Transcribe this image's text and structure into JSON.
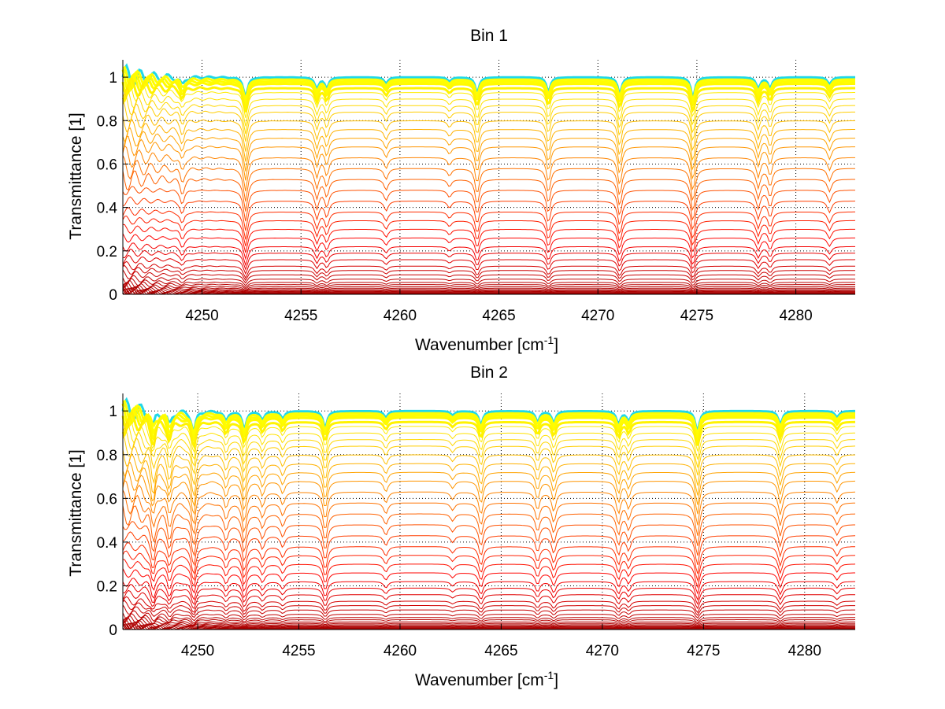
{
  "chart_data": [
    {
      "type": "line",
      "title": "Bin 1",
      "xlabel": "Wavenumber [cm",
      "xlabel_sup": "-1",
      "xlabel_end": "]",
      "ylabel": "Transmittance [1]",
      "xlim": [
        4246,
        4283
      ],
      "ylim": [
        0,
        1.08
      ],
      "xticks": [
        4250,
        4255,
        4260,
        4265,
        4270,
        4275,
        4280
      ],
      "yticks": [
        0,
        0.2,
        0.4,
        0.6,
        0.8,
        1
      ],
      "xtick_labels": [
        "4250",
        "4255",
        "4260",
        "4265",
        "4270",
        "4275",
        "4280"
      ],
      "ytick_labels": [
        "0",
        "0.2",
        "0.4",
        "0.6",
        "0.8",
        "1"
      ],
      "grid": true,
      "series_count": 40,
      "colormap": "jet",
      "series_baseline_levels": [
        1.0,
        0.99,
        0.98,
        0.97,
        0.95,
        0.93,
        0.9,
        0.87,
        0.84,
        0.8,
        0.76,
        0.72,
        0.68,
        0.63,
        0.58,
        0.53,
        0.48,
        0.43,
        0.38,
        0.34,
        0.3,
        0.26,
        0.22,
        0.19,
        0.16,
        0.13,
        0.11,
        0.09,
        0.07,
        0.055,
        0.045,
        0.035,
        0.028,
        0.022,
        0.017,
        0.013,
        0.01,
        0.007,
        0.004,
        0.002
      ],
      "absorption_lines": [
        {
          "x": 4249.0,
          "depth": 0.4
        },
        {
          "x": 4252.2,
          "depth": 1.0
        },
        {
          "x": 4255.8,
          "depth": 0.55
        },
        {
          "x": 4256.3,
          "depth": 0.5
        },
        {
          "x": 4259.3,
          "depth": 0.3
        },
        {
          "x": 4262.5,
          "depth": 0.2
        },
        {
          "x": 4263.9,
          "depth": 0.75
        },
        {
          "x": 4267.5,
          "depth": 0.7
        },
        {
          "x": 4271.1,
          "depth": 0.8
        },
        {
          "x": 4274.8,
          "depth": 1.0
        },
        {
          "x": 4278.1,
          "depth": 0.55
        },
        {
          "x": 4278.7,
          "depth": 0.5
        },
        {
          "x": 4281.7,
          "depth": 0.35
        }
      ]
    },
    {
      "type": "line",
      "title": "Bin 2",
      "xlabel": "Wavenumber [cm",
      "xlabel_sup": "-1",
      "xlabel_end": "]",
      "ylabel": "Transmittance [1]",
      "xlim": [
        4246.3,
        4282.5
      ],
      "ylim": [
        0,
        1.08
      ],
      "xticks": [
        4250,
        4255,
        4260,
        4265,
        4270,
        4275,
        4280
      ],
      "yticks": [
        0,
        0.2,
        0.4,
        0.6,
        0.8,
        1
      ],
      "xtick_labels": [
        "4250",
        "4255",
        "4260",
        "4265",
        "4270",
        "4275",
        "4280"
      ],
      "ytick_labels": [
        "0",
        "0.2",
        "0.4",
        "0.6",
        "0.8",
        "1"
      ],
      "grid": true,
      "series_count": 40,
      "colormap": "jet",
      "series_baseline_levels": [
        1.0,
        0.99,
        0.98,
        0.97,
        0.95,
        0.93,
        0.9,
        0.87,
        0.84,
        0.8,
        0.76,
        0.72,
        0.68,
        0.63,
        0.58,
        0.53,
        0.48,
        0.43,
        0.38,
        0.34,
        0.3,
        0.26,
        0.22,
        0.19,
        0.16,
        0.13,
        0.11,
        0.09,
        0.07,
        0.055,
        0.045,
        0.035,
        0.028,
        0.022,
        0.017,
        0.013,
        0.01,
        0.007,
        0.004,
        0.002
      ],
      "absorption_lines": [
        {
          "x": 4247.8,
          "depth": 0.8
        },
        {
          "x": 4248.6,
          "depth": 0.7
        },
        {
          "x": 4249.8,
          "depth": 1.0
        },
        {
          "x": 4251.4,
          "depth": 0.45
        },
        {
          "x": 4252.3,
          "depth": 0.85
        },
        {
          "x": 4253.2,
          "depth": 0.4
        },
        {
          "x": 4254.2,
          "depth": 0.35
        },
        {
          "x": 4256.3,
          "depth": 0.8
        },
        {
          "x": 4259.3,
          "depth": 0.3
        },
        {
          "x": 4262.6,
          "depth": 0.2
        },
        {
          "x": 4264.0,
          "depth": 0.65
        },
        {
          "x": 4266.8,
          "depth": 0.5
        },
        {
          "x": 4267.6,
          "depth": 0.55
        },
        {
          "x": 4270.8,
          "depth": 0.6
        },
        {
          "x": 4271.3,
          "depth": 0.45
        },
        {
          "x": 4274.7,
          "depth": 1.0
        },
        {
          "x": 4278.8,
          "depth": 0.65
        },
        {
          "x": 4281.6,
          "depth": 0.3
        }
      ]
    }
  ]
}
